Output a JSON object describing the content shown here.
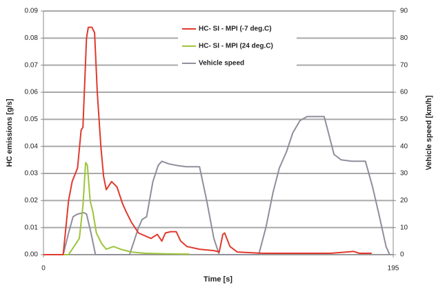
{
  "chart_data": {
    "type": "line",
    "xlabel": "Time [s]",
    "ylabel": "HC emissions [g/s]",
    "y2label": "Vehicle speed [km/h]",
    "xlim": [
      0,
      195
    ],
    "xticks": [
      0,
      195
    ],
    "ylim": [
      0,
      0.09
    ],
    "yticks": [
      {
        "value": 0,
        "label": "0.00"
      },
      {
        "value": 0.01,
        "label": "0.01"
      },
      {
        "value": 0.02,
        "label": "0.02"
      },
      {
        "value": 0.03,
        "label": "0.03"
      },
      {
        "value": 0.04,
        "label": "0.04"
      },
      {
        "value": 0.05,
        "label": "0.05"
      },
      {
        "value": 0.06,
        "label": "0.06"
      },
      {
        "value": 0.07,
        "label": "0.07"
      },
      {
        "value": 0.08,
        "label": "0.08"
      },
      {
        "value": 0.09,
        "label": "0.09"
      }
    ],
    "y2lim": [
      0,
      90
    ],
    "y2ticks": [
      0,
      10,
      20,
      30,
      40,
      50,
      60,
      70,
      80,
      90
    ],
    "grid": true,
    "legend": "top",
    "series": [
      {
        "name": "HC- SI - MPI (-7 deg.C)",
        "color": "#e0382c",
        "x": [
          0,
          11,
          14,
          16,
          19,
          21,
          22,
          24,
          25,
          27,
          28.5,
          30,
          32,
          33.5,
          35,
          38,
          41,
          44,
          46,
          49,
          53,
          56.5,
          60,
          63.5,
          66,
          68,
          71,
          74,
          76.5,
          80,
          87,
          95,
          98,
          100,
          101,
          104,
          108,
          122,
          137,
          160,
          173,
          176,
          183
        ],
        "values": [
          0,
          0,
          0.02,
          0.027,
          0.032,
          0.046,
          0.047,
          0.08,
          0.084,
          0.084,
          0.082,
          0.06,
          0.04,
          0.029,
          0.024,
          0.027,
          0.025,
          0.019,
          0.016,
          0.012,
          0.008,
          0.007,
          0.006,
          0.0075,
          0.005,
          0.008,
          0.0085,
          0.0085,
          0.005,
          0.003,
          0.002,
          0.0015,
          0.001,
          0.0075,
          0.008,
          0.003,
          0.001,
          0.0005,
          0.0005,
          0.0005,
          0.0012,
          0.0005,
          0.0005
        ]
      },
      {
        "name": "HC- SI - MPI (24 deg.C)",
        "color": "#9dc43a",
        "x": [
          0,
          14,
          17,
          20,
          22,
          23.5,
          24.5,
          26,
          27.5,
          29.5,
          32.5,
          35,
          39,
          43,
          49,
          56.5,
          68,
          81.5
        ],
        "values": [
          0,
          0,
          0.003,
          0.006,
          0.018,
          0.034,
          0.033,
          0.02,
          0.016,
          0.008,
          0.004,
          0.002,
          0.003,
          0.002,
          0.001,
          0.0005,
          0.0003,
          0.0002
        ]
      },
      {
        "name": "Vehicle speed",
        "color": "#8e8e9c",
        "axis": "y2",
        "x": [
          0,
          11,
          14,
          16.5,
          19,
          22.5,
          24,
          26.5,
          29,
          48,
          53,
          55,
          57.5,
          61,
          64,
          66,
          70,
          74,
          79.5,
          87,
          91,
          95,
          98,
          120,
          124,
          128,
          131.5,
          135.5,
          139,
          143,
          147,
          156.5,
          158.5,
          162,
          166,
          172,
          179.5,
          183.5,
          187,
          191,
          193
        ],
        "values": [
          0,
          0,
          8,
          14,
          15,
          15.5,
          15,
          8,
          0,
          0,
          10,
          13,
          14,
          27,
          33,
          34.5,
          33.5,
          33,
          32.5,
          32.5,
          20,
          6,
          0,
          0,
          10,
          23,
          32,
          38,
          45,
          49.5,
          51,
          51,
          46,
          37,
          35,
          34.5,
          34.5,
          25,
          15,
          3,
          0
        ]
      }
    ]
  }
}
